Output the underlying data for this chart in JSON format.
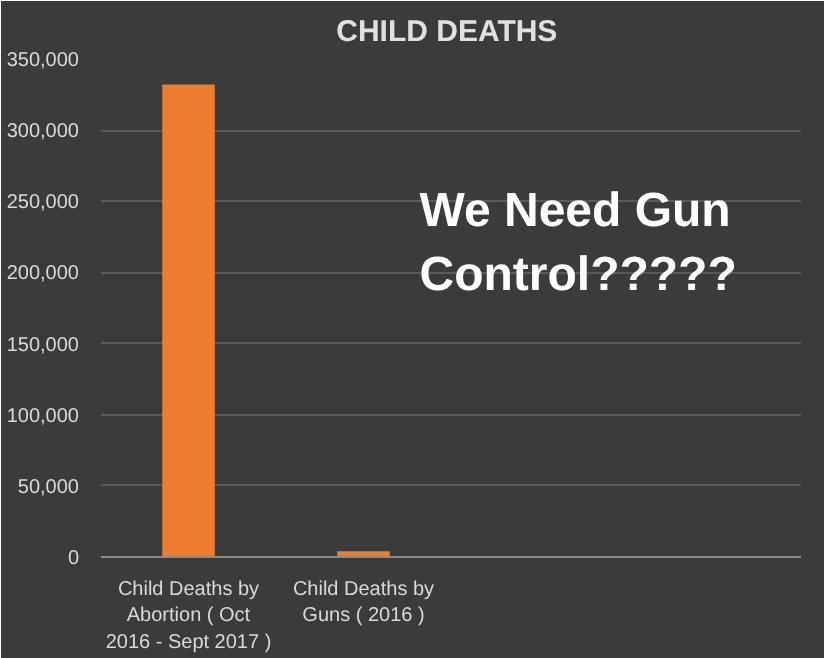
{
  "chart_data": {
    "type": "bar",
    "title": "CHILD  DEATHS",
    "categories": [
      "Child Deaths by Abortion ( Oct 2016 - Sept 2017 )",
      "Child Deaths by Guns ( 2016 )",
      null,
      null
    ],
    "values": [
      332000,
      4000,
      null,
      null
    ],
    "color": "#ed7d31",
    "ylim": [
      0,
      350000
    ],
    "yticks": [
      {
        "value": 0,
        "label": "0"
      },
      {
        "value": 50000,
        "label": "50,000"
      },
      {
        "value": 100000,
        "label": "100,000"
      },
      {
        "value": 150000,
        "label": "150,000"
      },
      {
        "value": 200000,
        "label": "200,000"
      },
      {
        "value": 250000,
        "label": "250,000"
      },
      {
        "value": 300000,
        "label": "300,000"
      },
      {
        "value": 350000,
        "label": "350,000"
      }
    ],
    "grid": "y",
    "annotations": [
      "We Need Gun Control?????"
    ]
  }
}
